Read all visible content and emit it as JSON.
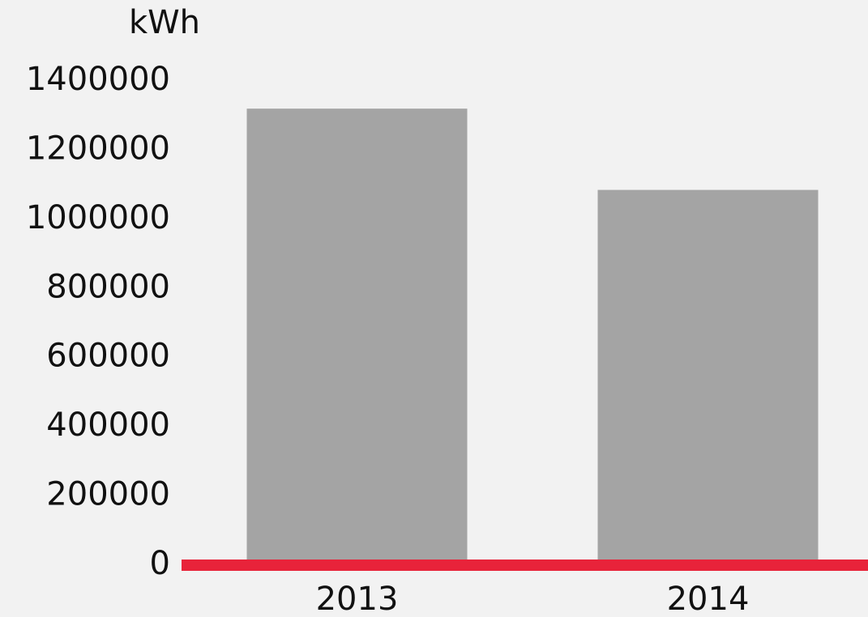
{
  "chart_data": {
    "type": "bar",
    "y_label": "kWh",
    "categories": [
      "2013",
      "2014"
    ],
    "values": [
      1320000,
      1085000
    ],
    "color": "#a4a4a4",
    "axis_color": "#e8233a",
    "ylim": [
      0,
      1400000
    ],
    "yticks": [
      0,
      200000,
      400000,
      600000,
      800000,
      1000000,
      1200000,
      1400000
    ],
    "grid": false
  }
}
